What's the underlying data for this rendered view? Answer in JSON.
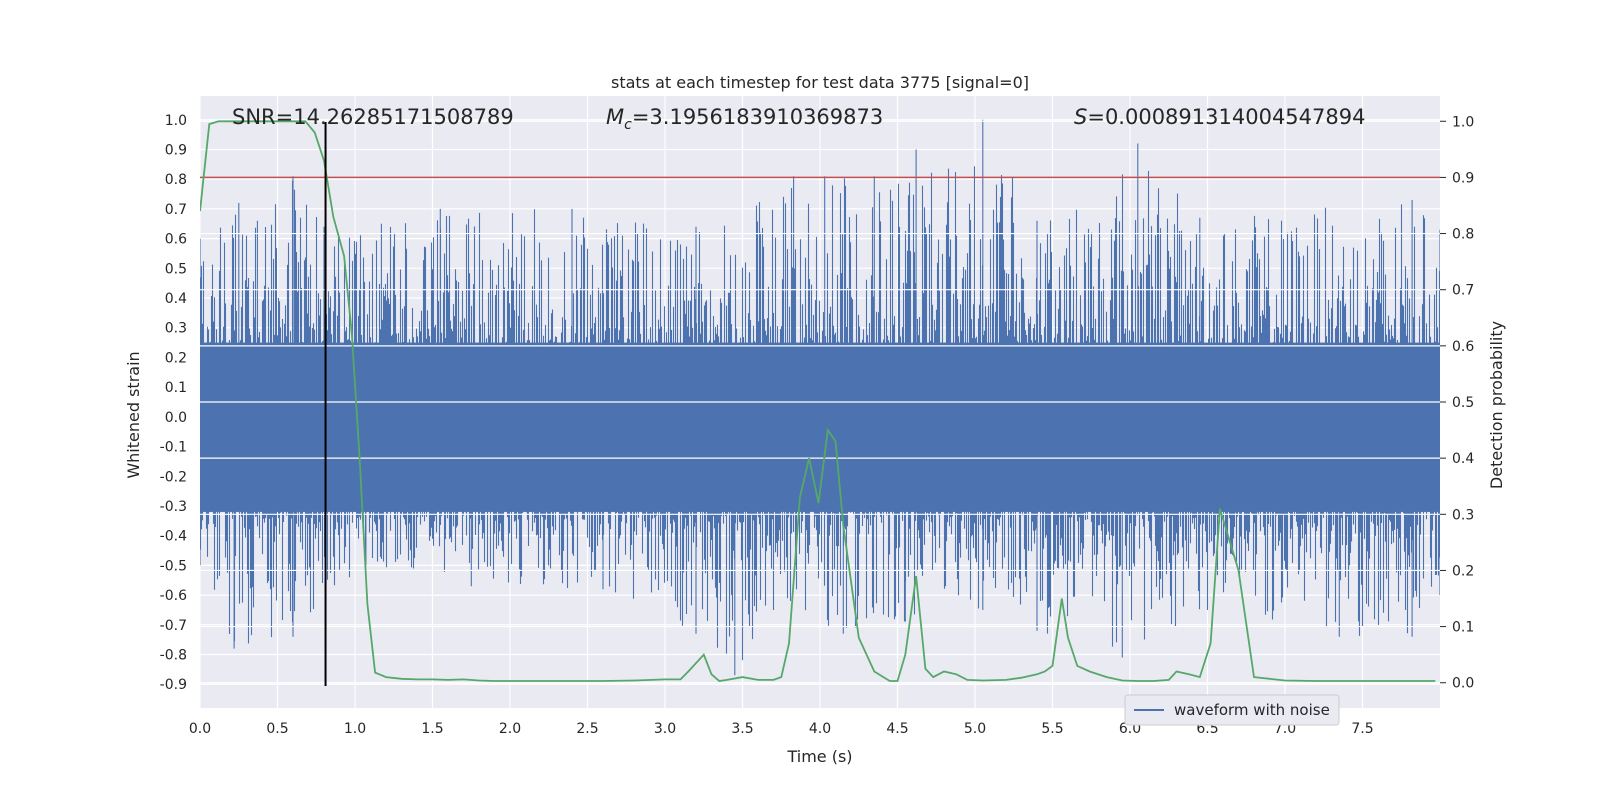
{
  "chart_data": {
    "type": "line",
    "title": "stats at each timestep for test data 3775 [signal=0]",
    "xlabel": "Time (s)",
    "ylabel": "Whitened strain",
    "ylabel_right": "Detection probability",
    "xlim": [
      0.0,
      8.0
    ],
    "ylim": [
      -0.98,
      1.08
    ],
    "ylim_right": [
      -0.045,
      1.045
    ],
    "xticks": [
      "0.0",
      "0.5",
      "1.0",
      "1.5",
      "2.0",
      "2.5",
      "3.0",
      "3.5",
      "4.0",
      "4.5",
      "5.0",
      "5.5",
      "6.0",
      "6.5",
      "7.0",
      "7.5"
    ],
    "yticks": [
      "1.0",
      "0.9",
      "0.8",
      "0.7",
      "0.6",
      "0.5",
      "0.4",
      "0.3",
      "0.2",
      "0.1",
      "0.0",
      "-0.1",
      "-0.2",
      "-0.3",
      "-0.4",
      "-0.5",
      "-0.6",
      "-0.7",
      "-0.8",
      "-0.9"
    ],
    "yticks_right": [
      "1.0",
      "0.9",
      "0.8",
      "0.7",
      "0.6",
      "0.5",
      "0.4",
      "0.3",
      "0.2",
      "0.1",
      "0.0"
    ],
    "grid": true,
    "legend_position": "lower-right",
    "annotations": {
      "snr": "SNR=14.26285171508789",
      "mc_symbol": "M",
      "mc_sub": "c",
      "mc_value": "=3.1956183910369873",
      "s_symbol": "S",
      "s_value": "=0.000891314004547894"
    },
    "threshold_prob": 0.9,
    "marker_time": 0.81,
    "colors": {
      "waveform": "#4c72b0",
      "probability": "#55a868",
      "threshold": "#c44e52",
      "marker": "#000000",
      "background": "#eaeaf2",
      "grid": "#ffffff"
    },
    "series": [
      {
        "name": "waveform with noise",
        "axis": "left",
        "envelope_upper": [
          [
            0.0,
            0.6
          ],
          [
            0.25,
            0.72
          ],
          [
            0.37,
            0.66
          ],
          [
            0.6,
            0.81
          ],
          [
            0.8,
            0.64
          ],
          [
            1.17,
            0.65
          ],
          [
            1.55,
            0.7
          ],
          [
            2.4,
            0.7
          ],
          [
            3.2,
            0.64
          ],
          [
            3.83,
            0.81
          ],
          [
            4.03,
            0.81
          ],
          [
            4.35,
            0.81
          ],
          [
            4.62,
            0.9
          ],
          [
            5.05,
            1.0
          ],
          [
            5.4,
            0.66
          ],
          [
            6.05,
            0.92
          ],
          [
            6.45,
            0.67
          ],
          [
            7.82,
            0.73
          ],
          [
            8.0,
            0.63
          ]
        ],
        "envelope_lower": [
          [
            0.0,
            -0.5
          ],
          [
            0.22,
            -0.78
          ],
          [
            0.6,
            -0.74
          ],
          [
            1.07,
            -0.5
          ],
          [
            1.75,
            -0.57
          ],
          [
            2.6,
            -0.58
          ],
          [
            3.2,
            -0.73
          ],
          [
            3.45,
            -0.87
          ],
          [
            3.7,
            -0.65
          ],
          [
            4.15,
            -0.73
          ],
          [
            4.55,
            -0.69
          ],
          [
            5.05,
            -0.65
          ],
          [
            5.4,
            -0.72
          ],
          [
            5.95,
            -0.81
          ],
          [
            6.5,
            -0.65
          ],
          [
            7.35,
            -0.74
          ],
          [
            7.82,
            -0.74
          ],
          [
            8.0,
            -0.6
          ]
        ]
      },
      {
        "name": "",
        "axis": "right",
        "x": [
          0.0,
          0.06,
          0.12,
          0.2,
          0.3,
          0.4,
          0.5,
          0.6,
          0.68,
          0.74,
          0.8,
          0.86,
          0.93,
          0.98,
          1.03,
          1.08,
          1.13,
          1.2,
          1.3,
          1.4,
          1.5,
          1.6,
          1.7,
          1.8,
          1.9,
          2.0,
          2.2,
          2.4,
          2.6,
          2.8,
          3.0,
          3.1,
          3.15,
          3.25,
          3.3,
          3.35,
          3.4,
          3.5,
          3.6,
          3.7,
          3.75,
          3.8,
          3.87,
          3.93,
          3.99,
          4.05,
          4.1,
          4.15,
          4.25,
          4.35,
          4.45,
          4.5,
          4.55,
          4.62,
          4.68,
          4.73,
          4.8,
          4.88,
          4.95,
          5.05,
          5.2,
          5.3,
          5.4,
          5.45,
          5.5,
          5.56,
          5.6,
          5.66,
          5.74,
          5.85,
          5.95,
          6.05,
          6.15,
          6.25,
          6.3,
          6.38,
          6.45,
          6.52,
          6.58,
          6.7,
          6.8,
          7.0,
          7.2,
          7.5,
          7.8,
          7.97
        ],
        "y": [
          0.84,
          0.995,
          1.0,
          1.0,
          1.0,
          1.0,
          1.0,
          1.0,
          1.0,
          0.98,
          0.93,
          0.83,
          0.76,
          0.62,
          0.4,
          0.14,
          0.018,
          0.01,
          0.007,
          0.006,
          0.006,
          0.005,
          0.006,
          0.004,
          0.003,
          0.003,
          0.003,
          0.003,
          0.003,
          0.004,
          0.006,
          0.006,
          0.02,
          0.05,
          0.015,
          0.003,
          0.005,
          0.01,
          0.005,
          0.005,
          0.01,
          0.07,
          0.33,
          0.4,
          0.32,
          0.45,
          0.43,
          0.28,
          0.08,
          0.02,
          0.003,
          0.003,
          0.05,
          0.19,
          0.025,
          0.01,
          0.02,
          0.015,
          0.005,
          0.004,
          0.005,
          0.009,
          0.015,
          0.02,
          0.03,
          0.15,
          0.08,
          0.03,
          0.02,
          0.01,
          0.004,
          0.003,
          0.003,
          0.005,
          0.02,
          0.015,
          0.01,
          0.07,
          0.31,
          0.2,
          0.01,
          0.004,
          0.003,
          0.003,
          0.003,
          0.003
        ]
      }
    ]
  }
}
